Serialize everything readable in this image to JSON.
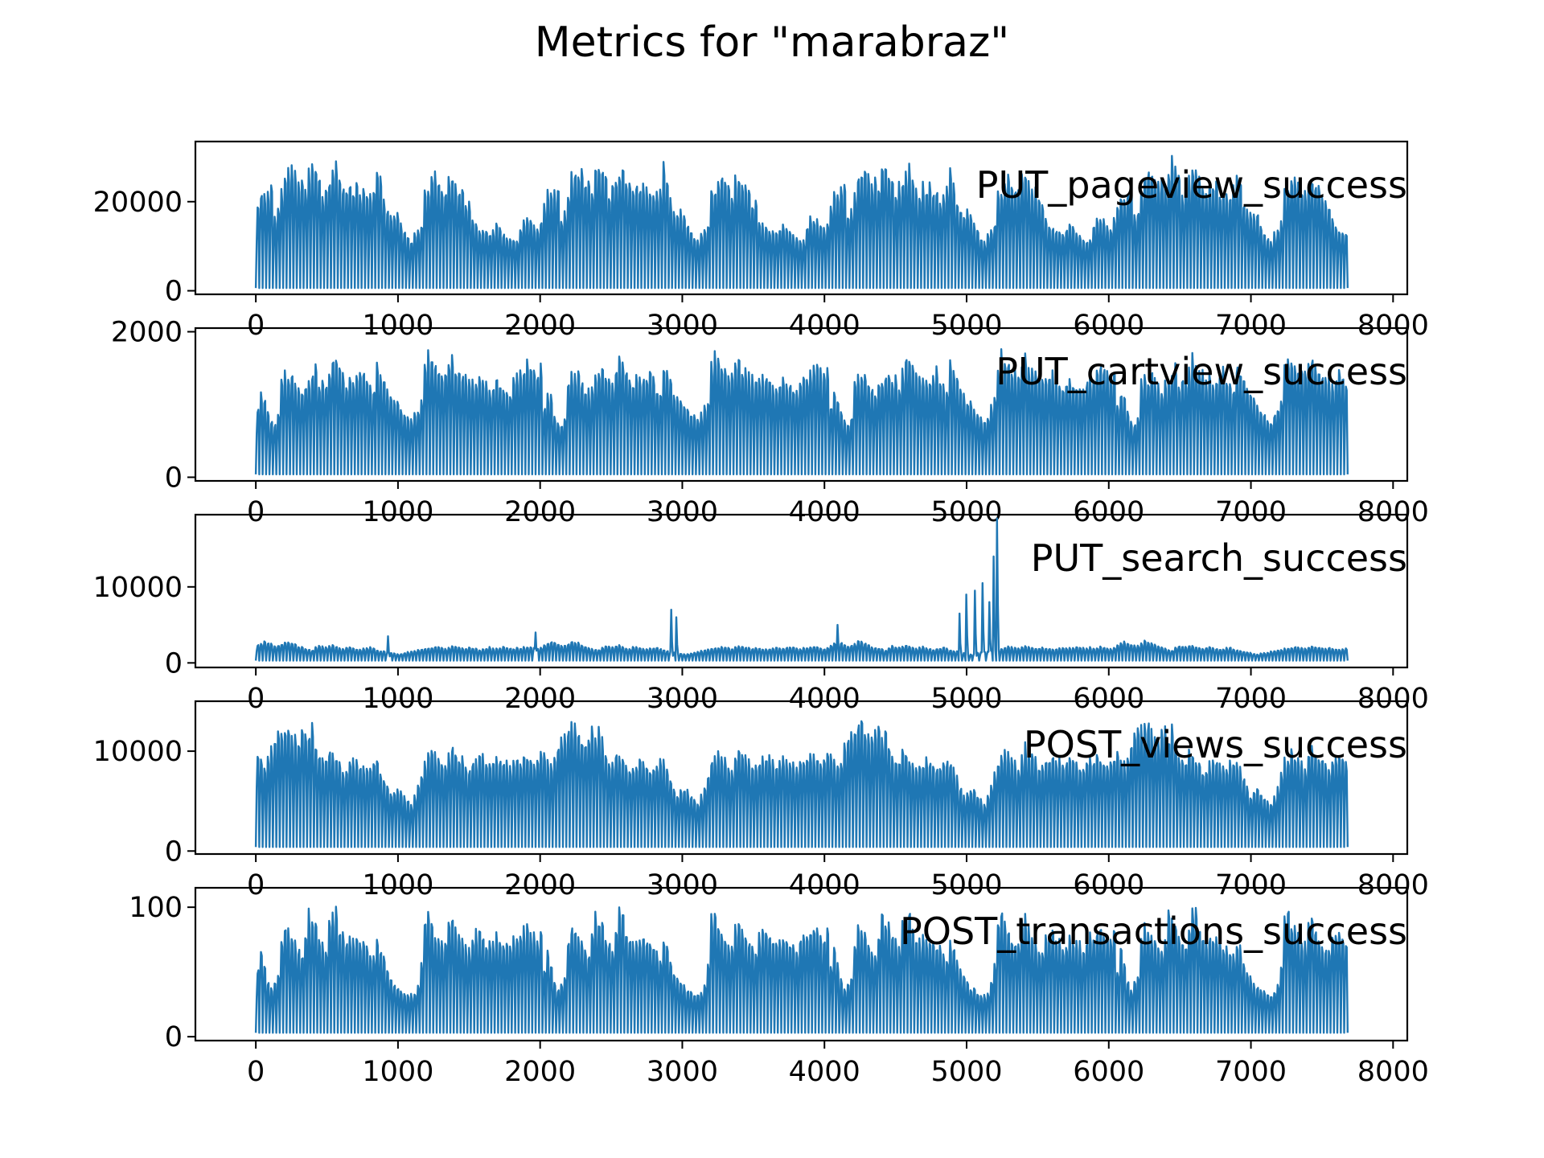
{
  "chart_data": {
    "type": "line",
    "title": "Metrics for \"marabraz\"",
    "grid": false,
    "x_range": [
      0,
      7680
    ],
    "x_ticks": [
      0,
      1000,
      2000,
      3000,
      4000,
      5000,
      6000,
      7000,
      8000
    ],
    "color": "#1f77b4",
    "panels": [
      {
        "name": "PUT_pageview_success",
        "ylim": [
          -800,
          33500
        ],
        "yticks": [
          0,
          20000
        ],
        "period": 168,
        "trough": 600,
        "daily_peaks": [
          20500,
          24000,
          23500,
          24500,
          25200,
          18000,
          19500,
          24500,
          28500,
          29800,
          30200,
          29300,
          26500,
          28000,
          25500,
          30000,
          32000,
          29600,
          29000,
          23000,
          26000,
          27500,
          29000,
          30500,
          27000,
          25500,
          24500,
          26500,
          25200,
          26000,
          24500,
          25000,
          23000,
          24000,
          25000,
          30500,
          27000,
          22000,
          20000,
          18500,
          19500,
          19000,
          16000,
          14500,
          13000,
          12000,
          14000,
          15500,
          16500,
          24500,
          25000,
          27000,
          28500,
          26500,
          25000,
          24000,
          27500,
          28000,
          26500,
          25000,
          24500,
          22000,
          21500,
          17000,
          16000,
          15500,
          15000,
          14500,
          14000,
          15000,
          16500,
          15500,
          14000,
          13500,
          13000,
          12500,
          12000,
          16000,
          18000,
          17500,
          17000,
          16000,
          15000,
          17500
        ],
        "series": [
          {
            "x": [
              0,
              168,
              336,
              504,
              672,
              840,
              1008,
              1176,
              1344,
              1512,
              1680,
              1848,
              2016,
              2184,
              2352,
              2520,
              2688,
              2856,
              3024,
              3192,
              3360,
              3528,
              3696,
              3864,
              4032,
              4200,
              4368,
              4536,
              4704,
              4872,
              5040,
              5208,
              5376,
              5544,
              5712,
              5880,
              6048,
              6216,
              6384,
              6552,
              6720,
              6888,
              7056,
              7224,
              7392,
              7560,
              7680
            ],
            "y": [
              23500,
              24000,
              29500,
              29000,
              28000,
              24500,
              30000,
              29000,
              24000,
              29000,
              28000,
              28500,
              23000,
              26000,
              25000,
              24500,
              23500,
              30500,
              20500,
              19500,
              19000,
              16500,
              12000,
              15000,
              27000,
              28000,
              24000,
              27500,
              26500,
              22000,
              24000,
              16000,
              15500,
              15000,
              14000,
              14500,
              15500,
              15000,
              12500,
              12000,
              13000,
              16000,
              18500,
              17500,
              17000,
              18000,
              16000
            ]
          }
        ]
      },
      {
        "name": "PUT_cartview_success",
        "ylim": [
          -50,
          2050
        ],
        "yticks": [
          0,
          2000
        ],
        "period": 168,
        "trough": 40,
        "daily_peaks": [
          1050,
          1250,
          1200,
          950,
          850,
          800,
          900,
          1450,
          1550,
          1500,
          1600,
          1450,
          1350,
          1300,
          1400,
          1500,
          1550,
          1650,
          1450,
          1500,
          1400,
          1600,
          1800,
          1750,
          1650,
          1550,
          1450,
          1500,
          1450,
          1500,
          1550,
          1600,
          1450,
          1350,
          1300,
          1700,
          1600,
          1500,
          1300,
          1250,
          1150,
          1100,
          1000,
          950,
          900,
          850,
          950,
          1050,
          1150,
          1700,
          1850,
          1800,
          1750,
          1650,
          1600,
          1550,
          1750,
          1800,
          1650,
          1600,
          1550,
          1500,
          1450,
          1450,
          1500,
          1550,
          1500,
          1400,
          1350,
          1400,
          1500,
          1450,
          1400,
          1350,
          1300,
          1450,
          1500,
          1550,
          1600,
          1700,
          1650,
          1600,
          1550,
          1650
        ],
        "series": [
          {
            "x": [
              0,
              336,
              672,
              1008,
              1344,
              1680,
              2016,
              2352,
              2688,
              3024,
              3360,
              3696,
              4032,
              4368,
              4704,
              5040,
              5376,
              5712,
              6048,
              6384,
              6720,
              7056,
              7392,
              7680
            ],
            "y": [
              1000,
              1200,
              850,
              1500,
              1550,
              1800,
              1500,
              1600,
              1550,
              1400,
              1000,
              950,
              1850,
              1650,
              1550,
              1450,
              1500,
              1450,
              1500,
              1400,
              1500,
              1600,
              1700,
              1650
            ]
          }
        ]
      },
      {
        "name": "PUT_search_success",
        "ylim": [
          -600,
          19500
        ],
        "yticks": [
          0,
          10000
        ],
        "period": 168,
        "trough": 300,
        "daily_peaks": [
          2600,
          2800,
          3000,
          2900,
          2700,
          2400,
          2500,
          2700,
          3100,
          3000,
          2800,
          2600,
          2300,
          2200,
          2000,
          1900,
          1800,
          2200,
          2400,
          2300,
          2200,
          2400,
          2500,
          2300,
          2100,
          2000,
          2200,
          2300,
          2100,
          2000,
          1900,
          2000,
          2100,
          2200,
          2000,
          1800,
          1700,
          1600,
          1500,
          1400,
          1300,
          1200,
          1300,
          1400,
          1500,
          1600,
          1700,
          1800,
          1900,
          2000,
          2100,
          2200,
          2300,
          2200,
          2100,
          2000,
          2200,
          2400,
          2300,
          2200,
          2100,
          2000,
          2200,
          2100,
          2000,
          1900,
          2000,
          2100,
          2200,
          2000,
          2100,
          2200,
          2300,
          2200,
          2100,
          2000,
          2200,
          2100,
          2200,
          2300,
          2200,
          2100,
          2000,
          2100
        ],
        "spikes": [
          {
            "x": 930,
            "y": 3500
          },
          {
            "x": 1970,
            "y": 4000
          },
          {
            "x": 2920,
            "y": 7000
          },
          {
            "x": 2960,
            "y": 6000
          },
          {
            "x": 4090,
            "y": 5000
          },
          {
            "x": 4950,
            "y": 6500
          },
          {
            "x": 5000,
            "y": 9000
          },
          {
            "x": 5060,
            "y": 9500
          },
          {
            "x": 5110,
            "y": 10500
          },
          {
            "x": 5160,
            "y": 8000
          },
          {
            "x": 5190,
            "y": 14000
          },
          {
            "x": 5215,
            "y": 19000
          }
        ],
        "series": [
          {
            "x": [
              0,
              336,
              672,
              930,
              1344,
              1680,
              1970,
              2352,
              2688,
              2920,
              3024,
              3360,
              3696,
              4090,
              4368,
              4704,
              5000,
              5110,
              5215,
              5376,
              5712,
              6048,
              6384,
              6720,
              7056,
              7392,
              7680
            ],
            "y": [
              2600,
              3000,
              2700,
              3500,
              2000,
              2300,
              4000,
              2100,
              2000,
              7000,
              1700,
              1400,
              1500,
              5000,
              2300,
              2300,
              9000,
              10500,
              19000,
              2100,
              2100,
              2200,
              2100,
              2200,
              2300,
              2200,
              2100
            ]
          }
        ]
      },
      {
        "name": "POST_views_success",
        "ylim": [
          -300,
          15000
        ],
        "yticks": [
          0,
          10000
        ],
        "period": 168,
        "trough": 400,
        "daily_peaks": [
          11000,
          10000,
          9500,
          10000,
          11500,
          12500,
          13000,
          13500,
          14000,
          14300,
          13000,
          12500,
          12000,
          13000,
          13500,
          12500,
          13800,
          12000,
          10500,
          9800,
          10000,
          11000,
          10500,
          10000,
          9500,
          9000,
          9200,
          9500,
          10000,
          9800,
          9500,
          9200,
          9000,
          9500,
          10000,
          9800,
          9000,
          8000,
          7000,
          6000,
          6500,
          7000,
          6500,
          6000,
          5500,
          5000,
          6000,
          7000,
          8500,
          10000,
          10500,
          11000,
          10500,
          10000,
          9500,
          9000,
          10500,
          11500,
          11000,
          10500,
          10000,
          9500,
          9000,
          9800,
          10000,
          10500,
          10200,
          10000,
          9500,
          9800,
          10500,
          10000,
          9800,
          9500,
          9200,
          9800,
          10200,
          10000,
          10500,
          10200,
          10000,
          9800,
          10000,
          10500
        ],
        "series": [
          {
            "x": [
              0,
              336,
              672,
              1008,
              1344,
              1680,
              2016,
              2352,
              2688,
              3024,
              3360,
              3696,
              4032,
              4368,
              4704,
              5040,
              5376,
              5712,
              6048,
              6384,
              6720,
              7056,
              7392,
              7680
            ],
            "y": [
              11000,
              13000,
              14000,
              13500,
              12000,
              10500,
              9500,
              9800,
              9200,
              9000,
              6500,
              5500,
              10500,
              11000,
              10000,
              10000,
              10000,
              10500,
              9800,
              10000,
              10500,
              10200,
              10000,
              10500
            ]
          }
        ]
      },
      {
        "name": "POST_transactions_success",
        "ylim": [
          -3,
          115
        ],
        "yticks": [
          0,
          100
        ],
        "period": 168,
        "trough": 3,
        "daily_peaks": [
          57,
          76,
          60,
          47,
          40,
          45,
          50,
          80,
          93,
          90,
          85,
          80,
          75,
          70,
          85,
          105,
          100,
          95,
          85,
          80,
          75,
          95,
          105,
          110,
          90,
          85,
          80,
          85,
          80,
          85,
          82,
          78,
          75,
          70,
          68,
          80,
          75,
          65,
          55,
          50,
          45,
          42,
          40,
          38,
          36,
          35,
          38,
          45,
          60,
          100,
          108,
          95,
          90,
          85,
          80,
          78,
          95,
          100,
          90,
          85,
          80,
          75,
          72,
          85,
          88,
          90,
          85,
          80,
          78,
          80,
          85,
          82,
          80,
          78,
          75,
          82,
          85,
          88,
          90,
          92,
          88,
          85,
          82,
          90
        ],
        "series": [
          {
            "x": [
              0,
              336,
              672,
              1008,
              1344,
              1680,
              2016,
              2352,
              2688,
              3024,
              3360,
              3696,
              4032,
              4368,
              4704,
              5040,
              5376,
              5712,
              6048,
              6384,
              6720,
              7056,
              7392,
              7680
            ],
            "y": [
              57,
              60,
              50,
              93,
              80,
              105,
              110,
              85,
              85,
              80,
              45,
              38,
              100,
              90,
              95,
              85,
              80,
              88,
              85,
              82,
              85,
              90,
              92,
              90
            ]
          }
        ]
      }
    ]
  }
}
